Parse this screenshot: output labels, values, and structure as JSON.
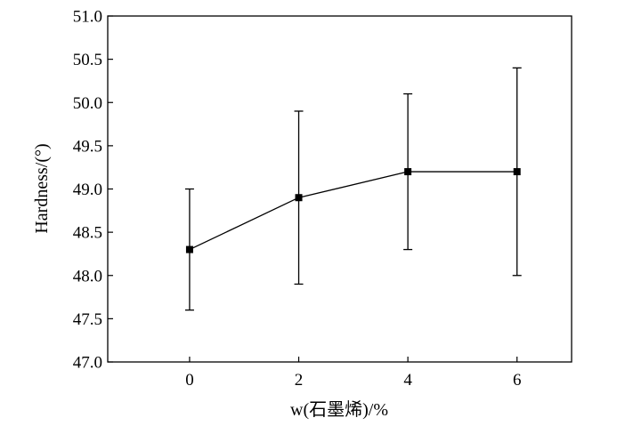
{
  "chart_data": {
    "type": "line",
    "title": "",
    "xlabel": "w(石墨烯)/%",
    "ylabel": "Hardness/(°)",
    "x": [
      0,
      2,
      4,
      6
    ],
    "series": [
      {
        "values": [
          48.3,
          48.9,
          49.2,
          49.2
        ],
        "error_lower": [
          47.6,
          47.9,
          48.3,
          48.0
        ],
        "error_upper": [
          49.0,
          49.9,
          50.1,
          50.4
        ]
      }
    ],
    "xlim": [
      -1.5,
      7.0
    ],
    "ylim": [
      47.0,
      51.0
    ],
    "xticks": [
      0,
      2,
      4,
      6
    ],
    "xtick_labels": [
      "0",
      "2",
      "4",
      "6"
    ],
    "yticks": [
      47.0,
      47.5,
      48.0,
      48.5,
      49.0,
      49.5,
      50.0,
      50.5,
      51.0
    ],
    "ytick_labels": [
      "47.0",
      "47.5",
      "48.0",
      "48.5",
      "49.0",
      "49.5",
      "50.0",
      "50.5",
      "51.0"
    ],
    "grid": false,
    "marker": "square",
    "color": "#000000"
  }
}
